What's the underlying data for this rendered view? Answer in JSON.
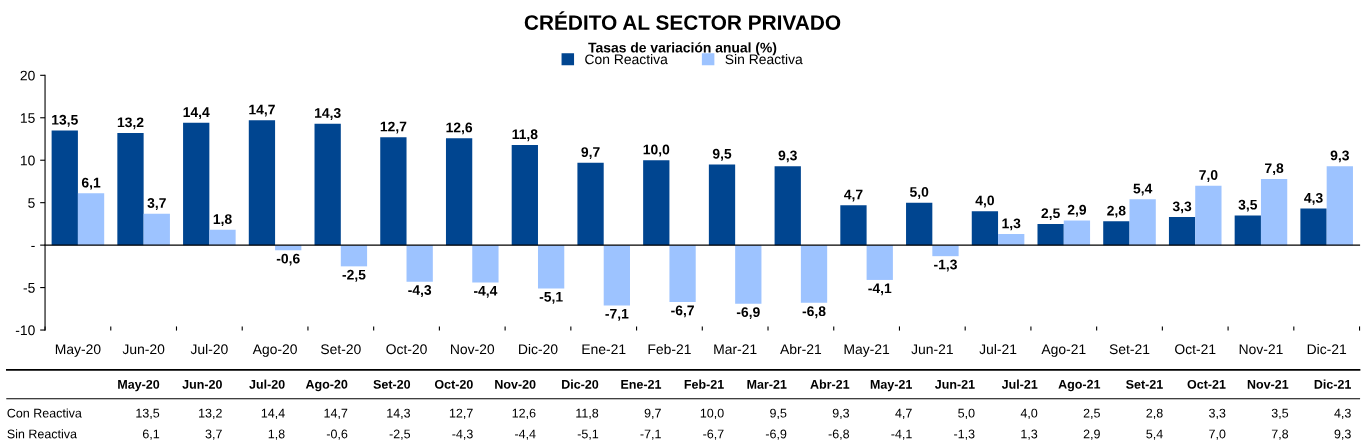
{
  "chart_data": {
    "type": "bar",
    "title": "CRÉDITO AL SECTOR PRIVADO",
    "subtitle": "Tasas de variación anual (%)",
    "categories": [
      "May-20",
      "Jun-20",
      "Jul-20",
      "Ago-20",
      "Set-20",
      "Oct-20",
      "Nov-20",
      "Dic-20",
      "Ene-21",
      "Feb-21",
      "Mar-21",
      "Abr-21",
      "May-21",
      "Jun-21",
      "Jul-21",
      "Ago-21",
      "Set-21",
      "Oct-21",
      "Nov-21",
      "Dic-21"
    ],
    "series": [
      {
        "name": "Con Reactiva",
        "color": "#004590",
        "values": [
          13.5,
          13.2,
          14.4,
          14.7,
          14.3,
          12.7,
          12.6,
          11.8,
          9.7,
          10.0,
          9.5,
          9.3,
          4.7,
          5.0,
          4.0,
          2.5,
          2.8,
          3.3,
          3.5,
          4.3
        ],
        "value_labels": [
          "13,5",
          "13,2",
          "14,4",
          "14,7",
          "14,3",
          "12,7",
          "12,6",
          "11,8",
          "9,7",
          "10,0",
          "9,5",
          "9,3",
          "4,7",
          "5,0",
          "4,0",
          "2,5",
          "2,8",
          "3,3",
          "3,5",
          "4,3"
        ]
      },
      {
        "name": "Sin Reactiva",
        "color": "#9dc3ff",
        "values": [
          6.1,
          3.7,
          1.8,
          -0.6,
          -2.5,
          -4.3,
          -4.4,
          -5.1,
          -7.1,
          -6.7,
          -6.9,
          -6.8,
          -4.1,
          -1.3,
          1.3,
          2.9,
          5.4,
          7.0,
          7.8,
          9.3
        ],
        "value_labels": [
          "6,1",
          "3,7",
          "1,8",
          "-0,6",
          "-2,5",
          "-4,3",
          "-4,4",
          "-5,1",
          "-7,1",
          "-6,7",
          "-6,9",
          "-6,8",
          "-4,1",
          "-1,3",
          "1,3",
          "2,9",
          "5,4",
          "7,0",
          "7,8",
          "9,3"
        ]
      }
    ],
    "ylim": [
      -10,
      20
    ],
    "yticks": [
      -10,
      -5,
      {
        "value": 0,
        "label": "-"
      },
      5,
      10,
      15,
      20
    ],
    "legend": "top"
  }
}
